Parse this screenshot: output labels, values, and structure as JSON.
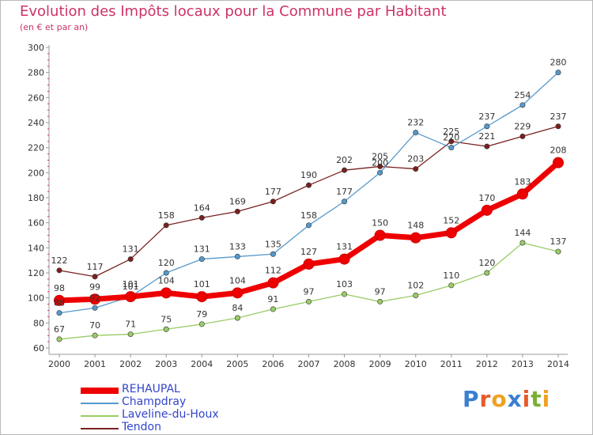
{
  "title": "Evolution des Impôts locaux pour la Commune par Habitant",
  "subtitle": "(en € et par an)",
  "logo_text": "Proxiti",
  "chart_data": {
    "type": "line",
    "title": "Evolution des Impôts locaux pour la Commune par Habitant",
    "subtitle": "(en € et par an)",
    "xlabel": "",
    "ylabel": "",
    "x": [
      2000,
      2001,
      2002,
      2003,
      2004,
      2005,
      2006,
      2007,
      2008,
      2009,
      2010,
      2011,
      2012,
      2013,
      2014
    ],
    "ylim": [
      60,
      300
    ],
    "yticks": [
      60,
      80,
      100,
      120,
      140,
      160,
      180,
      200,
      220,
      240,
      260,
      280,
      300
    ],
    "grid": false,
    "legend_position": "bottom-left",
    "series": [
      {
        "name": "Tendon",
        "color": "#7a2020",
        "values": [
          122,
          117,
          131,
          158,
          164,
          169,
          177,
          190,
          202,
          205,
          203,
          225,
          221,
          229,
          237
        ]
      },
      {
        "name": "Champdray",
        "color": "#5599cc",
        "values": [
          88,
          92,
          101,
          120,
          131,
          133,
          135,
          158,
          177,
          200,
          232,
          220,
          237,
          254,
          280
        ]
      },
      {
        "name": "Laveline-du-Houx",
        "color": "#99cc66",
        "values": [
          67,
          70,
          71,
          75,
          79,
          84,
          91,
          97,
          103,
          97,
          102,
          110,
          120,
          144,
          137
        ]
      },
      {
        "name": "REHAUPAL",
        "color": "#ee0000",
        "values": [
          98,
          99,
          101,
          104,
          101,
          104,
          112,
          127,
          131,
          150,
          148,
          152,
          170,
          183,
          208
        ]
      }
    ],
    "legend": [
      "REHAUPAL",
      "Champdray",
      "Laveline-du-Houx",
      "Tendon"
    ]
  }
}
